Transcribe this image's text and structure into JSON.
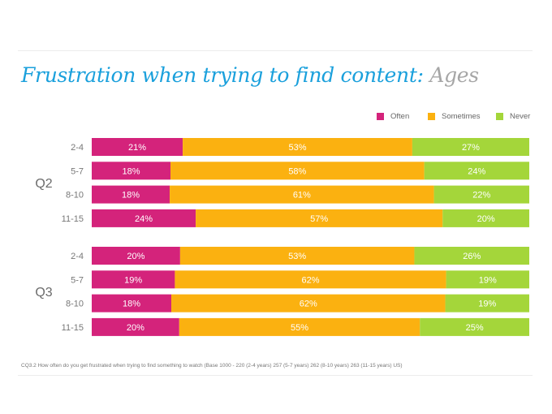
{
  "title": {
    "main": "Frustration when trying to find content: ",
    "sub": "Ages"
  },
  "colors": {
    "often": "#d4237b",
    "sometimes": "#fbb110",
    "never": "#a4d63a"
  },
  "footnote": "CQ3.2 How often do you get frustrated when trying to find something to watch (Base 1000 - 220 (2-4 years) 257 (5-7 years) 262 (8-10 years) 263 (11-15 years) US)",
  "chart_data": {
    "type": "bar",
    "orientation": "horizontal",
    "stacked": true,
    "legend": [
      "Often",
      "Sometimes",
      "Never"
    ],
    "legend_position": "top-right",
    "groups": [
      {
        "name": "Q2",
        "categories": [
          "2-4",
          "5-7",
          "8-10",
          "11-15"
        ],
        "series": [
          {
            "name": "Often",
            "values": [
              21,
              18,
              18,
              24
            ]
          },
          {
            "name": "Sometimes",
            "values": [
              53,
              58,
              61,
              57
            ]
          },
          {
            "name": "Never",
            "values": [
              27,
              24,
              22,
              20
            ]
          }
        ]
      },
      {
        "name": "Q3",
        "categories": [
          "2-4",
          "5-7",
          "8-10",
          "11-15"
        ],
        "series": [
          {
            "name": "Often",
            "values": [
              20,
              19,
              18,
              20
            ]
          },
          {
            "name": "Sometimes",
            "values": [
              53,
              62,
              62,
              55
            ]
          },
          {
            "name": "Never",
            "values": [
              26,
              19,
              19,
              25
            ]
          }
        ]
      }
    ]
  }
}
